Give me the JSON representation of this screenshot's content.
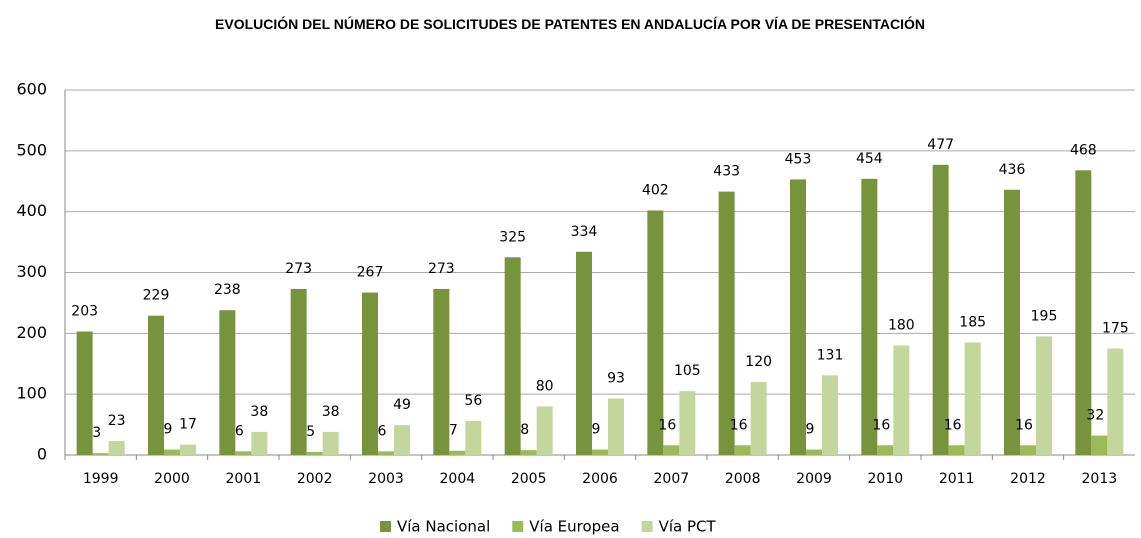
{
  "chart_data": {
    "type": "bar",
    "title": "EVOLUCIÓN DEL NÚMERO DE SOLICITUDES DE PATENTES EN ANDALUCÍA POR VÍA DE PRESENTACIÓN",
    "categories": [
      "1999",
      "2000",
      "2001",
      "2002",
      "2003",
      "2004",
      "2005",
      "2006",
      "2007",
      "2008",
      "2009",
      "2010",
      "2011",
      "2012",
      "2013"
    ],
    "series": [
      {
        "name": "Vía Nacional",
        "color": "#77933c",
        "values": [
          203,
          229,
          238,
          273,
          267,
          273,
          325,
          334,
          402,
          433,
          453,
          454,
          477,
          436,
          468
        ]
      },
      {
        "name": "Vía Europea",
        "color": "#9bbb59",
        "values": [
          3,
          9,
          6,
          5,
          6,
          7,
          8,
          9,
          16,
          16,
          9,
          16,
          16,
          16,
          32
        ]
      },
      {
        "name": "Vía PCT",
        "color": "#c3d69b",
        "values": [
          23,
          17,
          38,
          38,
          49,
          56,
          80,
          93,
          105,
          120,
          131,
          180,
          185,
          195,
          175
        ]
      }
    ],
    "ylim": [
      0,
      600
    ],
    "yticks": [
      0,
      100,
      200,
      300,
      400,
      500,
      600
    ],
    "grid": true,
    "legend": "bottom"
  }
}
